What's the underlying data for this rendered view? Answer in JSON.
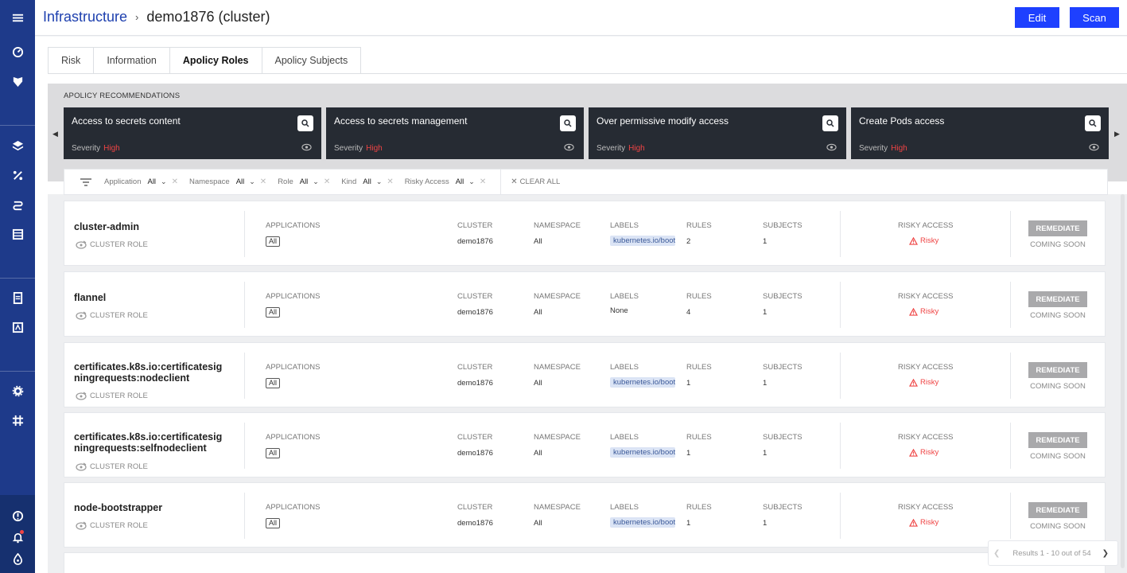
{
  "header": {
    "breadcrumb_root": "Infrastructure",
    "breadcrumb_current": "demo1876 (cluster)",
    "edit_label": "Edit",
    "scan_label": "Scan"
  },
  "tabs": [
    "Risk",
    "Information",
    "Apolicy Roles",
    "Apolicy Subjects"
  ],
  "active_tab": "Apolicy Roles",
  "recommendations": {
    "title": "APOLICY RECOMMENDATIONS",
    "severity_label": "Severity",
    "items": [
      {
        "name": "Access to secrets content",
        "severity": "High"
      },
      {
        "name": "Access to secrets management",
        "severity": "High"
      },
      {
        "name": "Over permissive modify access",
        "severity": "High"
      },
      {
        "name": "Create Pods access",
        "severity": "High"
      }
    ]
  },
  "filters": {
    "items": [
      {
        "label": "Application",
        "value": "All"
      },
      {
        "label": "Namespace",
        "value": "All"
      },
      {
        "label": "Role",
        "value": "All"
      },
      {
        "label": "Kind",
        "value": "All"
      },
      {
        "label": "Risky Access",
        "value": "All"
      }
    ],
    "clear_all": "CLEAR ALL"
  },
  "columns": {
    "applications": "APPLICATIONS",
    "cluster": "CLUSTER",
    "namespace": "NAMESPACE",
    "labels": "LABELS",
    "rules": "RULES",
    "subjects": "SUBJECTS",
    "risky_access": "RISKY ACCESS"
  },
  "row_common": {
    "role_type": "CLUSTER ROLE",
    "applications_value": "All",
    "remediate_label": "REMEDIATE",
    "coming_soon": "COMING SOON",
    "risky_label": "Risky"
  },
  "roles": [
    {
      "name": "cluster-admin",
      "cluster": "demo1876",
      "namespace": "All",
      "labels": "kubernetes.io/bootstrapping",
      "rules": "2",
      "subjects": "1"
    },
    {
      "name": "flannel",
      "cluster": "demo1876",
      "namespace": "All",
      "labels": "None",
      "rules": "4",
      "subjects": "1"
    },
    {
      "name": "certificates.k8s.io:certificatesig ningrequests:nodeclient",
      "cluster": "demo1876",
      "namespace": "All",
      "labels": "kubernetes.io/bootstrapping",
      "rules": "1",
      "subjects": "1"
    },
    {
      "name": "certificates.k8s.io:certificatesig ningrequests:selfnodeclient",
      "cluster": "demo1876",
      "namespace": "All",
      "labels": "kubernetes.io/bootstrapping",
      "rules": "1",
      "subjects": "1"
    },
    {
      "name": "node-bootstrapper",
      "cluster": "demo1876",
      "namespace": "All",
      "labels": "kubernetes.io/bootstrapping",
      "rules": "1",
      "subjects": "1"
    }
  ],
  "pagination": {
    "text": "Results 1 - 10 out of 54"
  },
  "colors": {
    "sidebar": "#1e3a8a",
    "primary_button": "#1e40ff",
    "severity_high": "#ef4444",
    "card_dark": "#262b33"
  }
}
